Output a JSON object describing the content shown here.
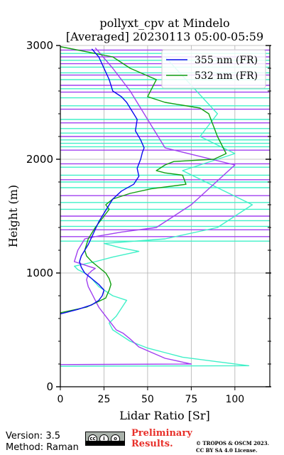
{
  "chart_data": {
    "type": "line",
    "title": "pollyxt_cpv at Mindelo",
    "subtitle": "[Averaged] 20230113 05:00-05:59",
    "xlabel": "Lidar Ratio [Sr]",
    "ylabel": "Height (m)",
    "xlim": [
      0,
      120
    ],
    "ylim": [
      0,
      3000
    ],
    "xticks": [
      "0",
      "25",
      "50",
      "75",
      "100"
    ],
    "yticks": [
      "0",
      "1000",
      "2000",
      "3000"
    ],
    "grid": true,
    "legend_position": "top-right",
    "series": [
      {
        "name": "355 nm (FR)",
        "color": "#0a0aee",
        "x": [
          0,
          10,
          18,
          22,
          24,
          25,
          22,
          18,
          14,
          12,
          11,
          12,
          14,
          16,
          19,
          22,
          26,
          30,
          35,
          42,
          45,
          44,
          45,
          46,
          47,
          48,
          46,
          43,
          44,
          42,
          40,
          38,
          35,
          30,
          28,
          25,
          22,
          18
        ],
        "y": [
          640,
          680,
          720,
          760,
          800,
          850,
          900,
          950,
          1000,
          1050,
          1100,
          1150,
          1200,
          1250,
          1350,
          1450,
          1550,
          1650,
          1720,
          1780,
          1850,
          1920,
          1960,
          2000,
          2060,
          2100,
          2170,
          2250,
          2350,
          2400,
          2450,
          2500,
          2550,
          2600,
          2700,
          2800,
          2900,
          2970
        ]
      },
      {
        "name": "532 nm (FR)",
        "color": "#11a011",
        "x": [
          0,
          15,
          26,
          28,
          29,
          28,
          26,
          22,
          18,
          15,
          14,
          16,
          20,
          25,
          28,
          26,
          30,
          40,
          52,
          72,
          70,
          60,
          55,
          60,
          65,
          88,
          95,
          90,
          85,
          80,
          60,
          50,
          55,
          40,
          30,
          0
        ],
        "y": [
          650,
          700,
          780,
          850,
          900,
          950,
          1000,
          1050,
          1100,
          1150,
          1200,
          1300,
          1400,
          1500,
          1560,
          1600,
          1650,
          1700,
          1740,
          1780,
          1860,
          1880,
          1900,
          1950,
          1980,
          2000,
          2050,
          2200,
          2400,
          2450,
          2500,
          2550,
          2700,
          2800,
          2900,
          2990
        ]
      },
      {
        "name": "",
        "color": "#a040f0",
        "x": [
          0,
          75,
          60,
          45,
          40,
          36,
          32,
          30,
          28,
          26,
          24,
          22,
          20,
          18,
          16,
          15,
          16,
          18,
          20,
          16,
          12,
          8,
          10,
          12,
          14,
          20,
          35,
          55,
          75,
          100,
          60,
          40,
          30,
          20
        ],
        "y": [
          195,
          200,
          250,
          350,
          420,
          470,
          500,
          540,
          580,
          620,
          660,
          700,
          760,
          820,
          880,
          940,
          990,
          1020,
          1040,
          1060,
          1080,
          1100,
          1200,
          1250,
          1300,
          1320,
          1360,
          1400,
          1600,
          1950,
          2100,
          2600,
          2800,
          2980
        ]
      },
      {
        "name": "",
        "color": "#40f0c8",
        "x": [
          0,
          108,
          90,
          70,
          60,
          50,
          40,
          30,
          28,
          32,
          38,
          30,
          22,
          18,
          14,
          10,
          8,
          20,
          30,
          45,
          35,
          25,
          60,
          90,
          110,
          70,
          100,
          80,
          90,
          60
        ],
        "y": [
          180,
          185,
          220,
          260,
          300,
          340,
          400,
          500,
          560,
          620,
          760,
          800,
          880,
          950,
          1000,
          1030,
          1060,
          1100,
          1140,
          1190,
          1220,
          1260,
          1300,
          1400,
          1600,
          1900,
          2050,
          2200,
          2400,
          2900
        ]
      }
    ],
    "hlines": [
      {
        "color": "#40f0c8",
        "y": [
          1280,
          1410,
          1460,
          1560,
          1620,
          1750,
          1800,
          1860,
          1930,
          2110,
          2140,
          2170,
          2230,
          2270,
          2350,
          2470,
          2540,
          2620,
          2700,
          2760,
          2810,
          2870,
          2930
        ]
      },
      {
        "color": "#a040f0",
        "y": [
          1320,
          1380,
          1500,
          1680,
          1820,
          1960,
          2080,
          2200,
          2320,
          2440,
          2590,
          2650,
          2740,
          2840,
          2900,
          2960
        ]
      }
    ]
  },
  "footer": {
    "version": "Version: 3.5",
    "method": "Method: Raman",
    "prelim_line1": "Preliminary",
    "prelim_line2": "Results.",
    "copyright_line1": "© TROPOS & OSCM 2023.",
    "copyright_line2": "CC BY SA 4.0 License."
  }
}
